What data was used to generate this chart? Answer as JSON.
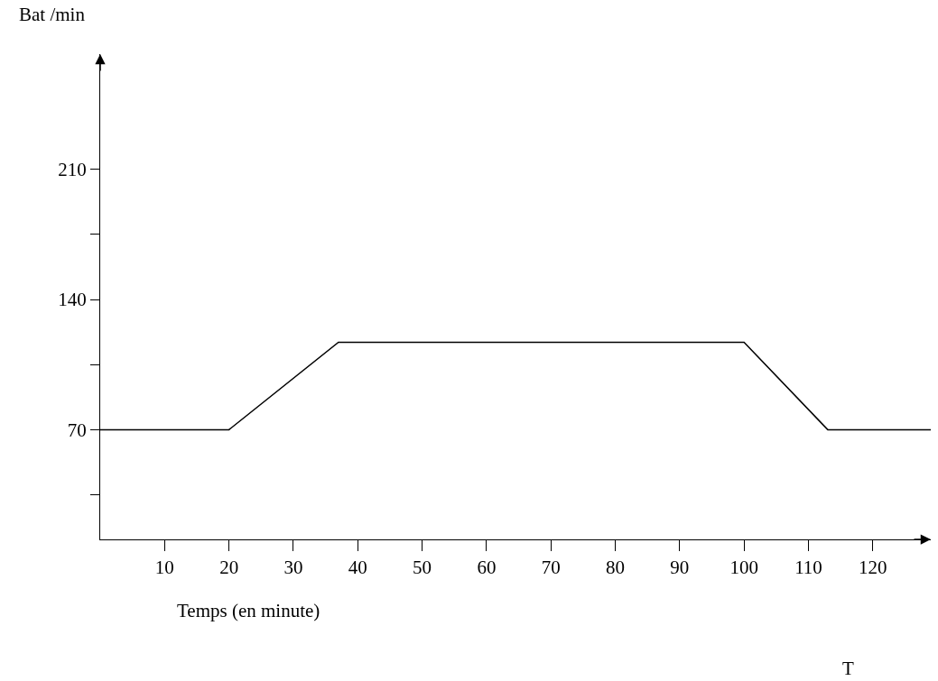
{
  "chart_data": {
    "type": "line",
    "xlabel": "Temps (en minute)",
    "ylabel": "Bat /min",
    "x": [
      0,
      20,
      37,
      100,
      113,
      129
    ],
    "series": [
      {
        "color": "#000000",
        "values": [
          70,
          70,
          117,
          117,
          70,
          70
        ]
      }
    ],
    "xlim": [
      0,
      129
    ],
    "ylim": [
      11,
      272
    ],
    "xticks": [
      10,
      20,
      30,
      40,
      50,
      60,
      70,
      80,
      90,
      100,
      110,
      120
    ],
    "yticks": [
      {
        "value": 35,
        "label": null
      },
      70,
      {
        "value": 105,
        "label": null
      },
      140,
      {
        "value": 175,
        "label": null
      },
      210
    ],
    "annotations": [
      "T"
    ],
    "marker": "none",
    "line_style": "solid"
  }
}
